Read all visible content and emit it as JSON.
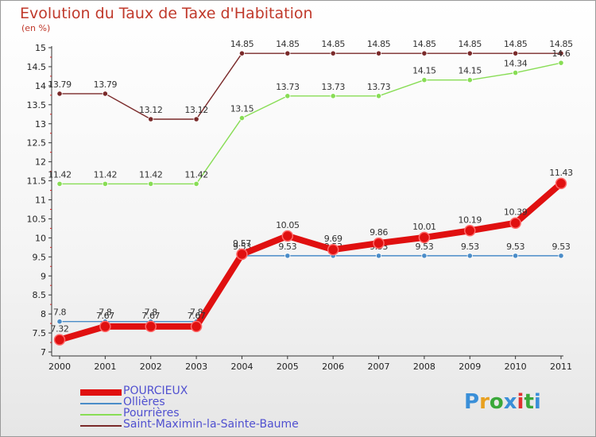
{
  "title": "Evolution du Taux de Taxe d'Habitation",
  "subtitle": "(en %)",
  "logo": {
    "text": "Proxiti",
    "letter_colors": [
      "#3a8fd8",
      "#e8a020",
      "#3aa83a",
      "#3a8fd8",
      "#e03030",
      "#3aa83a",
      "#3a8fd8"
    ]
  },
  "chart_data": {
    "type": "line",
    "title": "Evolution du Taux de Taxe d'Habitation",
    "ylabel": "(en %)",
    "xlabel": "",
    "x": [
      "2000",
      "2001",
      "2002",
      "2003",
      "2004",
      "2005",
      "2006",
      "2007",
      "2008",
      "2009",
      "2010",
      "2011"
    ],
    "ylim": [
      7,
      15
    ],
    "yticks": [
      "7",
      "7.5",
      "8",
      "8.5",
      "9",
      "9.5",
      "10",
      "10.5",
      "11",
      "11.5",
      "12",
      "12.5",
      "13",
      "13.5",
      "14",
      "14.5",
      "15"
    ],
    "grid": false,
    "legend_position": "bottom-left",
    "series": [
      {
        "name": "POURCIEUX",
        "color": "#e01010",
        "emphasis": true,
        "values": [
          7.32,
          7.67,
          7.67,
          7.67,
          9.57,
          10.05,
          9.69,
          9.86,
          10.01,
          10.19,
          10.39,
          11.43
        ],
        "labels": [
          "7.32",
          "7.67",
          "7.67",
          "7.67",
          "9.57",
          "10.05",
          "9.69",
          "9.86",
          "10.01",
          "10.19",
          "10.39",
          "11.43"
        ]
      },
      {
        "name": "Ollières",
        "color": "#4a8cc8",
        "values": [
          7.8,
          7.8,
          7.8,
          7.8,
          9.53,
          9.53,
          9.53,
          9.53,
          9.53,
          9.53,
          9.53,
          9.53
        ],
        "labels": [
          "7.8",
          "7.8",
          "7.8",
          "7.8",
          "9.53",
          "9.53",
          "9.53",
          "9.53",
          "9.53",
          "9.53",
          "9.53",
          "9.53"
        ]
      },
      {
        "name": "Pourrières",
        "color": "#88dd55",
        "values": [
          11.42,
          11.42,
          11.42,
          11.42,
          13.15,
          13.73,
          13.73,
          13.73,
          14.15,
          14.15,
          14.34,
          14.6
        ],
        "labels": [
          "11.42",
          "11.42",
          "11.42",
          "11.42",
          "13.15",
          "13.73",
          "13.73",
          "13.73",
          "14.15",
          "14.15",
          "14.34",
          "14.6"
        ]
      },
      {
        "name": "Saint-Maximin-la-Sainte-Baume",
        "color": "#7a2a2a",
        "values": [
          13.79,
          13.79,
          13.12,
          13.12,
          14.85,
          14.85,
          14.85,
          14.85,
          14.85,
          14.85,
          14.85,
          14.85
        ],
        "labels": [
          "13.79",
          "13.79",
          "13.12",
          "13.12",
          "14.85",
          "14.85",
          "14.85",
          "14.85",
          "14.85",
          "14.85",
          "14.85",
          "14.85"
        ]
      }
    ]
  }
}
